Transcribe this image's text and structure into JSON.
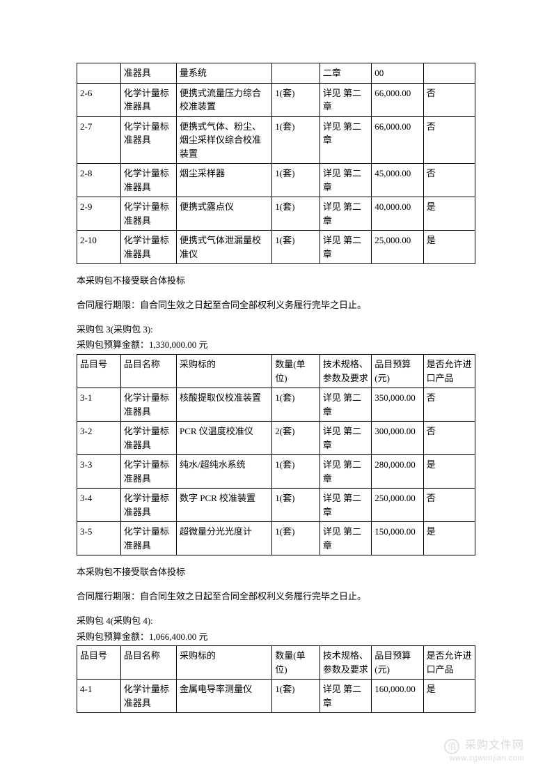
{
  "table1": {
    "rows": [
      [
        "",
        "准器具",
        "量系统",
        "",
        "二章",
        "00",
        ""
      ],
      [
        "2-6",
        "化学计量标准器具",
        "便携式流量压力综合校准装置",
        "1(套)",
        "详见 第二章",
        "66,000.00",
        "否"
      ],
      [
        "2-7",
        "化学计量标准器具",
        "便携式气体、粉尘、烟尘采样仪综合校准装置",
        "1(套)",
        "详见 第二章",
        "66,000.00",
        "否"
      ],
      [
        "2-8",
        "化学计量标准器具",
        "烟尘采样器",
        "1(套)",
        "详见 第二章",
        "45,000.00",
        "否"
      ],
      [
        "2-9",
        "化学计量标准器具",
        "便携式露点仪",
        "1(套)",
        "详见 第二章",
        "40,000.00",
        "是"
      ],
      [
        "2-10",
        "化学计量标准器具",
        "便携式气体泄漏量校准仪",
        "1(套)",
        "详见 第二章",
        "25,000.00",
        "是"
      ]
    ]
  },
  "section1": {
    "note1": "本采购包不接受联合体投标",
    "note2": "合同履行期限：自合同生效之日起至合同全部权利义务履行完毕之日止。"
  },
  "package3": {
    "title": "采购包 3(采购包 3):",
    "budget": "采购包预算金额：1,330,000.00 元",
    "headers": [
      "品目号",
      "品目名称",
      "采购标的",
      "数量(单位)",
      "技术规格、参数及要求",
      "品目预算(元)",
      "是否允许进口产品"
    ],
    "rows": [
      [
        "3-1",
        "化学计量标准器具",
        "核酸提取仪校准装置",
        "1(套)",
        "详见 第二章",
        "350,000.00",
        "否"
      ],
      [
        "3-2",
        "化学计量标准器具",
        "PCR 仪温度校准仪",
        "2(套)",
        "详见 第二章",
        "300,000.00",
        "否"
      ],
      [
        "3-3",
        "化学计量标准器具",
        "纯水/超纯水系统",
        "1(套)",
        "详见 第二章",
        "280,000.00",
        "是"
      ],
      [
        "3-4",
        "化学计量标准器具",
        "数字 PCR 校准装置",
        "1(套)",
        "详见 第二章",
        "250,000.00",
        "否"
      ],
      [
        "3-5",
        "化学计量标准器具",
        "超微量分光光度计",
        "1(套)",
        "详见 第二章",
        "150,000.00",
        "是"
      ]
    ]
  },
  "section2": {
    "note1": "本采购包不接受联合体投标",
    "note2": "合同履行期限：自合同生效之日起至合同全部权利义务履行完毕之日止。"
  },
  "package4": {
    "title": "采购包 4(采购包 4):",
    "budget": "采购包预算金额：1,066,400.00 元",
    "headers": [
      "品目号",
      "品目名称",
      "采购标的",
      "数量(单位)",
      "技术规格、参数及要求",
      "品目预算(元)",
      "是否允许进口产品"
    ],
    "rows": [
      [
        "4-1",
        "化学计量标准器具",
        "金属电导率测量仪",
        "1(套)",
        "详见 第二章",
        "160,000.00",
        "是"
      ]
    ]
  },
  "watermark": {
    "title": "采购文件网",
    "url": "www.cgwenjian.com",
    "icon": "佰"
  }
}
